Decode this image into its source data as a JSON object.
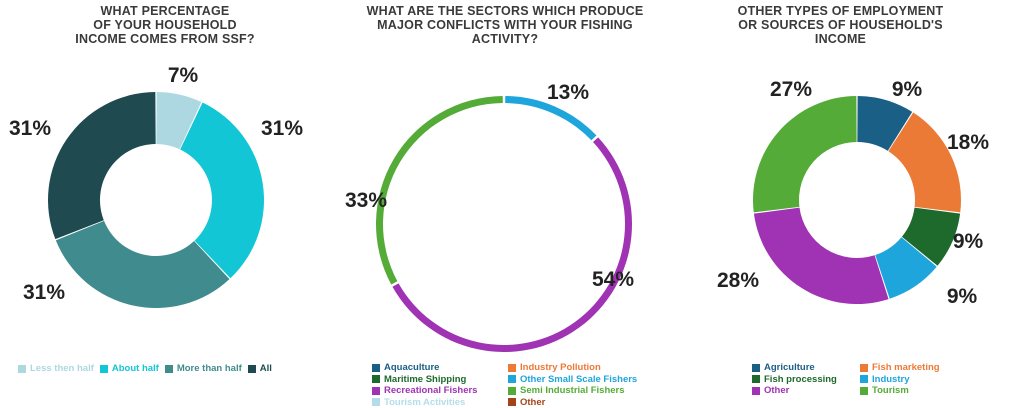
{
  "chart_data": [
    {
      "type": "pie",
      "donut": true,
      "title_lines": [
        "WHAT PERCENTAGE",
        "OF YOUR HOUSEHOLD",
        "INCOME COMES FROM SSF?"
      ],
      "categories": [
        "Less then half",
        "About half",
        "More than half",
        "All"
      ],
      "values": [
        7,
        31,
        31,
        31
      ],
      "labels": [
        "7%",
        "31%",
        "31%",
        "31%"
      ],
      "colors": [
        "#add8e2",
        "#12c6d5",
        "#3f8b8e",
        "#1e4a50"
      ],
      "legend_position": "bottom",
      "legend_items": [
        {
          "label": "Less then half",
          "color": "#add8e2"
        },
        {
          "label": "About half",
          "color": "#12c6d5"
        },
        {
          "label": "More than half",
          "color": "#3f8b8e"
        },
        {
          "label": "All",
          "color": "#1e4a50"
        }
      ]
    },
    {
      "type": "pie",
      "donut": true,
      "thin_ring": true,
      "title_lines": [
        "WHAT ARE THE SECTORS WHICH PRODUCE",
        "MAJOR CONFLICTS WITH YOUR FISHING",
        "ACTIVITY?"
      ],
      "categories": [
        "Other Small Scale Fishers",
        "Recreational Fishers",
        "Semi Industrial Fishers"
      ],
      "values": [
        13,
        54,
        33
      ],
      "labels": [
        "13%",
        "54%",
        "33%"
      ],
      "colors": [
        "#1ea5dc",
        "#a032b4",
        "#55ab38"
      ],
      "legend_position": "bottom",
      "legend_items": [
        {
          "label": "Aquaculture",
          "color": "#1a5f85"
        },
        {
          "label": "Industry Pollution",
          "color": "#ec7a37"
        },
        {
          "label": "Maritime Shipping",
          "color": "#1d6a2c"
        },
        {
          "label": "Other Small Scale Fishers",
          "color": "#1ea5dc"
        },
        {
          "label": "Recreational Fishers",
          "color": "#a032b4"
        },
        {
          "label": "Semi Industrial Fishers",
          "color": "#55ab38"
        },
        {
          "label": "Tourism Activities",
          "color": "#b5dde9"
        },
        {
          "label": "Other",
          "color": "#a3451b"
        }
      ]
    },
    {
      "type": "pie",
      "donut": true,
      "title_lines": [
        "OTHER TYPES OF EMPLOYMENT",
        "OR SOURCES OF HOUSEHOLD'S",
        "INCOME"
      ],
      "categories": [
        "Agriculture",
        "Fish marketing",
        "Fish processing",
        "Industry",
        "Other",
        "Tourism"
      ],
      "values": [
        9,
        18,
        9,
        9,
        28,
        27
      ],
      "labels": [
        "9%",
        "18%",
        "9%",
        "9%",
        "28%",
        "27%"
      ],
      "colors": [
        "#1a5f85",
        "#ec7a37",
        "#1d6a2c",
        "#1ea5dc",
        "#a032b4",
        "#55ab38"
      ],
      "legend_position": "bottom",
      "legend_items": [
        {
          "label": "Agriculture",
          "color": "#1a5f85"
        },
        {
          "label": "Fish marketing",
          "color": "#ec7a37"
        },
        {
          "label": "Fish processing",
          "color": "#1d6a2c"
        },
        {
          "label": "Industry",
          "color": "#1ea5dc"
        },
        {
          "label": "Other",
          "color": "#a032b4"
        },
        {
          "label": "Tourism",
          "color": "#55ab38"
        }
      ]
    }
  ]
}
